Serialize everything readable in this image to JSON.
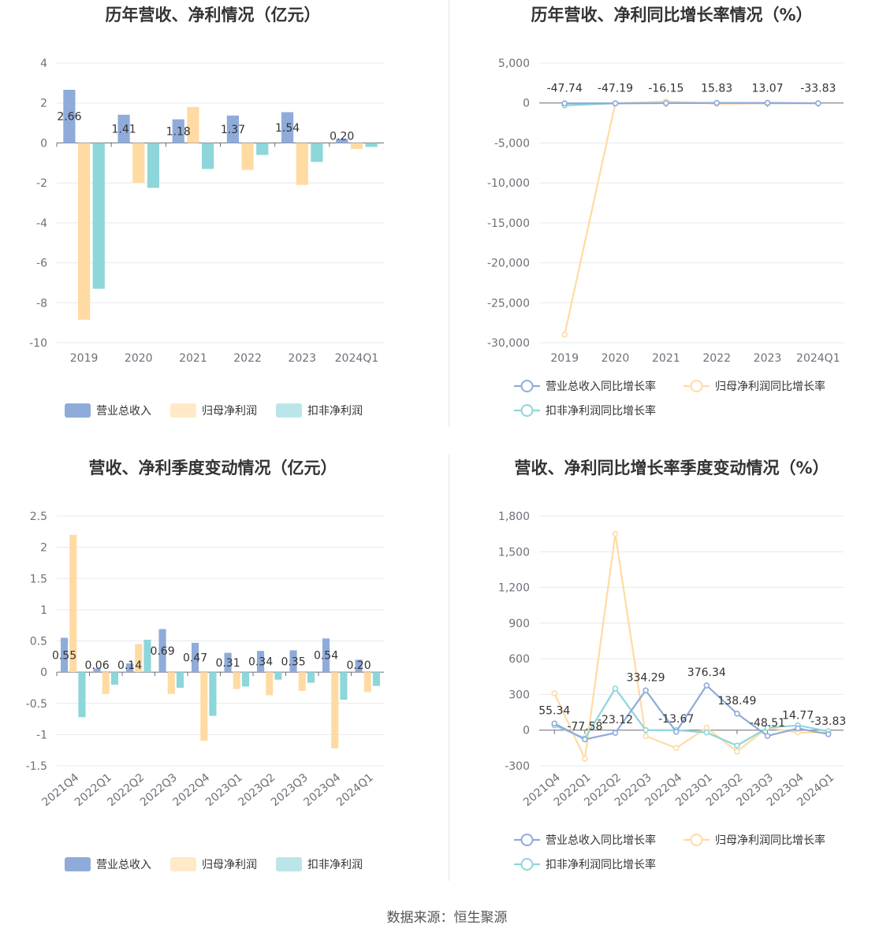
{
  "source_text": "数据来源：恒生聚源",
  "colors": {
    "revenue": "#8fabd9",
    "net_profit": "#ffdba3",
    "deducted_profit": "#8dd6da",
    "revenue_line": "#8fabd9",
    "net_profit_line": "#ffdba3",
    "deducted_profit_line": "#8dd6da"
  },
  "chart_data": [
    {
      "id": "annual-bar",
      "type": "bar",
      "title": "历年营收、净利情况（亿元）",
      "categories": [
        "2019",
        "2020",
        "2021",
        "2022",
        "2023",
        "2024Q1"
      ],
      "ylim": [
        -10,
        4
      ],
      "yticks": [
        4,
        2,
        0,
        -2,
        -4,
        -6,
        -8,
        -10
      ],
      "ytick_labels": [
        "4",
        "2",
        "0",
        "-2",
        "-4",
        "-6",
        "-8",
        "-10"
      ],
      "series": [
        {
          "name": "营业总收入",
          "values": [
            2.66,
            1.41,
            1.18,
            1.37,
            1.54,
            0.2
          ]
        },
        {
          "name": "归母净利润",
          "values": [
            -8.85,
            -2.0,
            1.8,
            -1.35,
            -2.1,
            -0.3
          ]
        },
        {
          "name": "扣非净利润",
          "values": [
            -7.3,
            -2.25,
            -1.3,
            -0.6,
            -0.95,
            -0.2
          ]
        }
      ],
      "data_labels": [
        "2.66",
        "1.41",
        "1.18",
        "1.37",
        "1.54",
        "0.20"
      ],
      "legend": [
        "营业总收入",
        "归母净利润",
        "扣非净利润"
      ]
    },
    {
      "id": "annual-line",
      "type": "line",
      "title": "历年营收、净利同比增长率情况（%）",
      "categories": [
        "2019",
        "2020",
        "2021",
        "2022",
        "2023",
        "2024Q1"
      ],
      "ylim": [
        -30000,
        5000
      ],
      "yticks": [
        5000,
        0,
        -5000,
        -10000,
        -15000,
        -20000,
        -25000,
        -30000
      ],
      "ytick_labels": [
        "5,000",
        "0",
        "-5,000",
        "-10,000",
        "-15,000",
        "-20,000",
        "-25,000",
        "-30,000"
      ],
      "series": [
        {
          "name": "营业总收入同比增长率",
          "values": [
            -47.74,
            -47.19,
            -16.15,
            15.83,
            13.07,
            -33.83
          ]
        },
        {
          "name": "归母净利润同比增长率",
          "values": [
            -29000,
            -30,
            200,
            -100,
            -60,
            -20
          ]
        },
        {
          "name": "扣非净利润同比增长率",
          "values": [
            -300,
            -50,
            -20,
            -10,
            -30,
            -40
          ]
        }
      ],
      "data_labels": [
        "-47.74",
        "-47.19",
        "-16.15",
        "15.83",
        "13.07",
        "-33.83"
      ],
      "legend": [
        "营业总收入同比增长率",
        "归母净利润同比增长率",
        "扣非净利润同比增长率"
      ]
    },
    {
      "id": "quarterly-bar",
      "type": "bar",
      "title": "营收、净利季度变动情况（亿元）",
      "categories": [
        "2021Q4",
        "2022Q1",
        "2022Q2",
        "2022Q3",
        "2022Q4",
        "2023Q1",
        "2023Q2",
        "2023Q3",
        "2023Q4",
        "2024Q1"
      ],
      "ylim": [
        -1.5,
        2.5
      ],
      "yticks": [
        2.5,
        2,
        1.5,
        1,
        0.5,
        0,
        -0.5,
        -1,
        -1.5
      ],
      "ytick_labels": [
        "2.5",
        "2",
        "1.5",
        "1",
        "0.5",
        "0",
        "-0.5",
        "-1",
        "-1.5"
      ],
      "series": [
        {
          "name": "营业总收入",
          "values": [
            0.55,
            0.06,
            0.14,
            0.69,
            0.47,
            0.31,
            0.34,
            0.35,
            0.54,
            0.2
          ]
        },
        {
          "name": "归母净利润",
          "values": [
            2.2,
            -0.35,
            0.45,
            -0.35,
            -1.1,
            -0.27,
            -0.37,
            -0.3,
            -1.22,
            -0.32
          ]
        },
        {
          "name": "扣非净利润",
          "values": [
            -0.72,
            -0.2,
            0.52,
            -0.25,
            -0.7,
            -0.23,
            -0.12,
            -0.17,
            -0.44,
            -0.22
          ]
        }
      ],
      "data_labels": [
        "0.55",
        "0.06",
        "0.14",
        "0.69",
        "0.47",
        "0.31",
        "0.34",
        "0.35",
        "0.54",
        "0.20"
      ],
      "legend": [
        "营业总收入",
        "归母净利润",
        "扣非净利润"
      ]
    },
    {
      "id": "quarterly-line",
      "type": "line",
      "title": "营收、净利同比增长率季度变动情况（%）",
      "categories": [
        "2021Q4",
        "2022Q1",
        "2022Q2",
        "2022Q3",
        "2022Q4",
        "2023Q1",
        "2023Q2",
        "2023Q3",
        "2023Q4",
        "2024Q1"
      ],
      "ylim": [
        -300,
        1800
      ],
      "yticks": [
        1800,
        1500,
        1200,
        900,
        600,
        300,
        0,
        -300
      ],
      "ytick_labels": [
        "1,800",
        "1,500",
        "1,200",
        "900",
        "600",
        "300",
        "0",
        "-300"
      ],
      "series": [
        {
          "name": "营业总收入同比增长率",
          "values": [
            55.34,
            -77.58,
            -23.12,
            334.29,
            -13.67,
            376.34,
            138.49,
            -48.51,
            14.77,
            -33.83
          ]
        },
        {
          "name": "归母净利润同比增长率",
          "values": [
            310,
            -240,
            1650,
            -50,
            -150,
            20,
            -180,
            20,
            -20,
            -20
          ]
        },
        {
          "name": "扣非净利润同比增长率",
          "values": [
            40,
            -70,
            350,
            0,
            0,
            -20,
            -130,
            20,
            40,
            -10
          ]
        }
      ],
      "data_labels": [
        "55.34",
        "-77.58",
        "-23.12",
        "334.29",
        "-13.67",
        "376.34",
        "138.49",
        "-48.51",
        "14.77",
        "-33.83"
      ],
      "legend": [
        "营业总收入同比增长率",
        "归母净利润同比增长率",
        "扣非净利润同比增长率"
      ]
    }
  ]
}
